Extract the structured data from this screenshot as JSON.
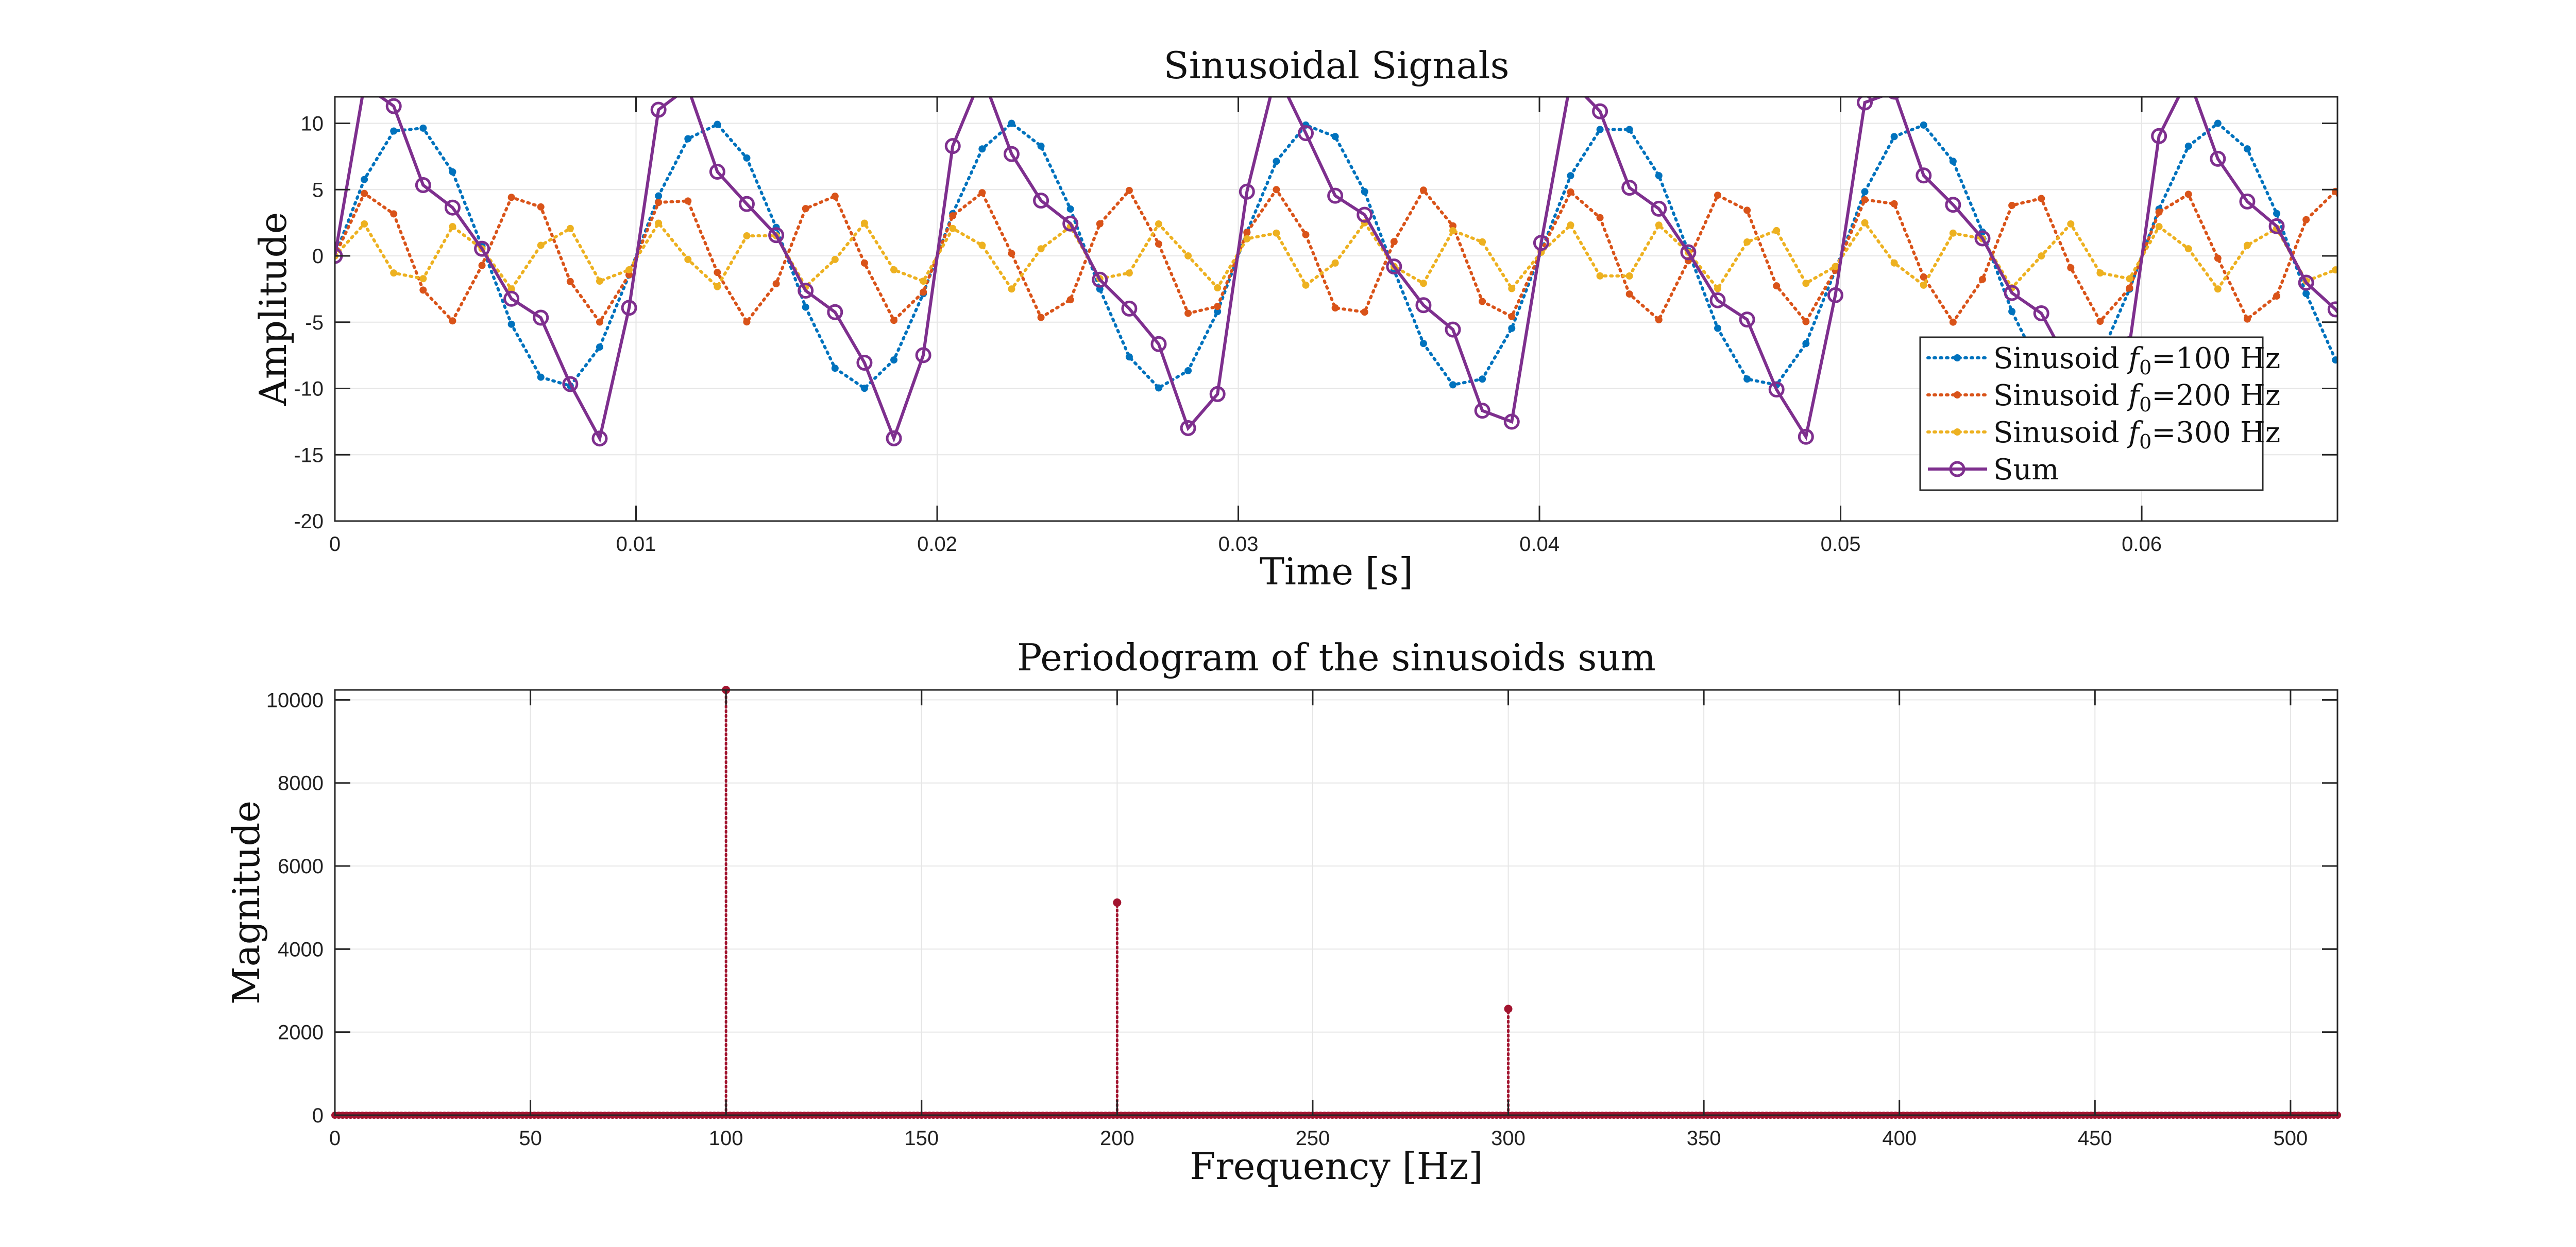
{
  "chart_data": [
    {
      "type": "line",
      "title": "Sinusoidal Signals",
      "xlabel": "Time [s]",
      "ylabel": "Amplitude",
      "xlim": [
        0,
        0.0665
      ],
      "ylim": [
        -20,
        12
      ],
      "xticks": [
        "0",
        "0.01",
        "0.02",
        "0.03",
        "0.04",
        "0.05",
        "0.06"
      ],
      "yticks": [
        "10",
        "5",
        "0",
        "-5",
        "-10",
        "-15",
        "-20"
      ],
      "grid": true,
      "legend_position": "lower-right",
      "sample_period": 0.000977,
      "series": [
        {
          "name": "Sinusoid",
          "legend_prefix": "Sinusoid ",
          "legend_sym": "f",
          "legend_sub": "0",
          "legend_suffix": "=100 Hz",
          "color": "#0072bd",
          "style": "dotted",
          "marker": "dot",
          "frequency": 100,
          "amplitude": 10
        },
        {
          "name": "Sinusoid",
          "legend_prefix": "Sinusoid ",
          "legend_sym": "f",
          "legend_sub": "0",
          "legend_suffix": "=200 Hz",
          "color": "#d95319",
          "style": "dotted",
          "marker": "dot",
          "frequency": 200,
          "amplitude": 5
        },
        {
          "name": "Sinusoid",
          "legend_prefix": "Sinusoid ",
          "legend_sym": "f",
          "legend_sub": "0",
          "legend_suffix": "=300 Hz",
          "color": "#edb120",
          "style": "dotted",
          "marker": "dot",
          "frequency": 300,
          "amplitude": 2.5
        },
        {
          "name": "Sum",
          "legend_prefix": "Sum",
          "legend_sym": "",
          "legend_sub": "",
          "legend_suffix": "",
          "color": "#7e2f8e",
          "style": "solid",
          "marker": "circle",
          "is_sum": true
        }
      ]
    },
    {
      "type": "stem",
      "title": "Periodogram of the sinusoids sum",
      "xlabel": "Frequency [Hz]",
      "ylabel": "Magnitude",
      "xlim": [
        0,
        512
      ],
      "ylim": [
        0,
        10240
      ],
      "xticks": [
        "0",
        "50",
        "100",
        "150",
        "200",
        "250",
        "300",
        "350",
        "400",
        "450",
        "500"
      ],
      "yticks": [
        "0",
        "2000",
        "4000",
        "6000",
        "8000",
        "10000"
      ],
      "grid": true,
      "color": "#a2142f",
      "baseline": 0,
      "peaks": [
        {
          "x": 100,
          "y": 10240
        },
        {
          "x": 200,
          "y": 5120
        },
        {
          "x": 300,
          "y": 2560
        }
      ]
    }
  ]
}
